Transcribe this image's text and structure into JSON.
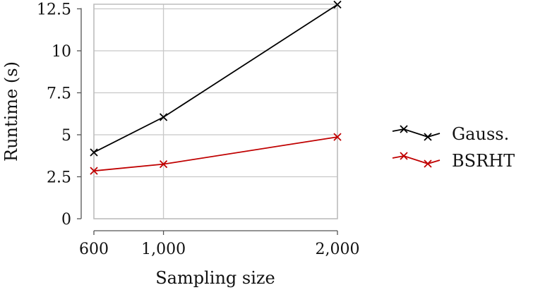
{
  "chart_data": {
    "type": "line",
    "title": "",
    "xlabel": "Sampling size",
    "ylabel": "Runtime (s)",
    "x": [
      600,
      1000,
      2000
    ],
    "x_tick_labels": [
      "600",
      "1,000",
      "2,000"
    ],
    "y_ticks": [
      0,
      2.5,
      5,
      7.5,
      10,
      12.5
    ],
    "y_tick_labels": [
      "0",
      "2.5",
      "5",
      "7.5",
      "10",
      "12.5"
    ],
    "xlim": [
      600,
      2000
    ],
    "ylim": [
      0,
      12.5
    ],
    "grid": true,
    "legend_position": "right",
    "series": [
      {
        "name": "Gauss.",
        "color": "#000000",
        "marker": "x",
        "values": [
          3.95,
          6.05,
          12.75
        ]
      },
      {
        "name": "BSRHT",
        "color": "#c00000",
        "marker": "x",
        "values": [
          2.85,
          3.25,
          4.87
        ]
      }
    ]
  },
  "legend": {
    "items": [
      {
        "label": "Gauss.",
        "color": "#000000"
      },
      {
        "label": "BSRHT",
        "color": "#c00000"
      }
    ]
  }
}
